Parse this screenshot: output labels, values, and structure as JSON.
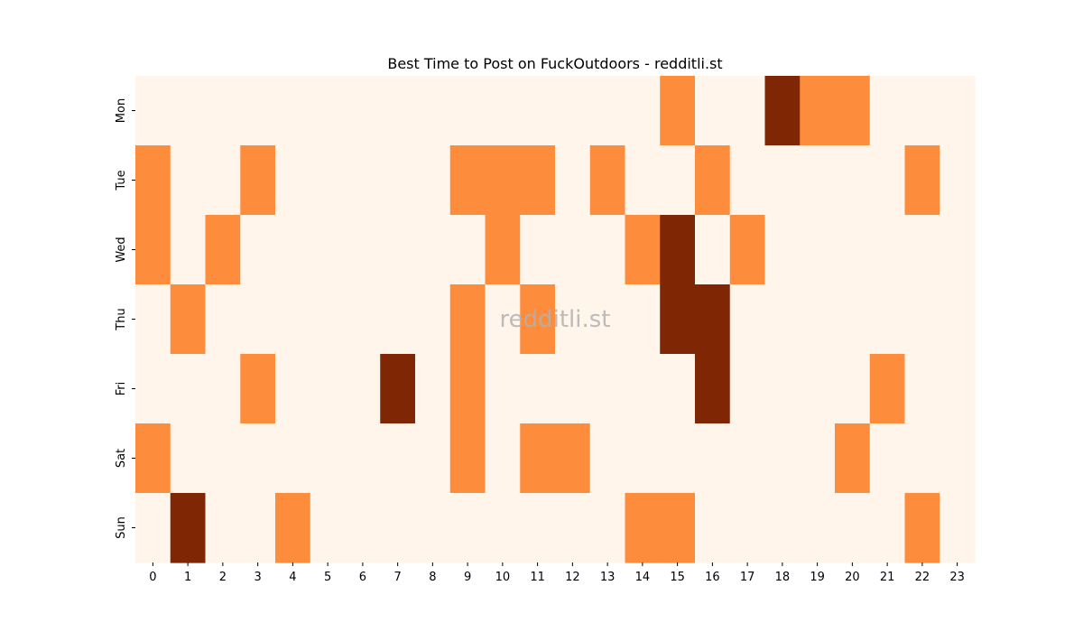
{
  "chart_data": {
    "type": "heatmap",
    "title": "Best Time to Post on FuckOutdoors - redditli.st",
    "watermark": "redditli.st",
    "xlabel": "",
    "ylabel": "",
    "x": [
      "0",
      "1",
      "2",
      "3",
      "4",
      "5",
      "6",
      "7",
      "8",
      "9",
      "10",
      "11",
      "12",
      "13",
      "14",
      "15",
      "16",
      "17",
      "18",
      "19",
      "20",
      "21",
      "22",
      "23"
    ],
    "y": [
      "Mon",
      "Tue",
      "Wed",
      "Thu",
      "Fri",
      "Sat",
      "Sun"
    ],
    "values": [
      [
        0,
        0,
        0,
        0,
        0,
        0,
        0,
        0,
        0,
        0,
        0,
        0,
        0,
        0,
        0,
        1,
        0,
        0,
        2,
        1,
        1,
        0,
        0,
        0
      ],
      [
        1,
        0,
        0,
        1,
        0,
        0,
        0,
        0,
        0,
        1,
        1,
        1,
        0,
        1,
        0,
        0,
        1,
        0,
        0,
        0,
        0,
        0,
        1,
        0
      ],
      [
        1,
        0,
        1,
        0,
        0,
        0,
        0,
        0,
        0,
        0,
        1,
        0,
        0,
        0,
        1,
        2,
        0,
        1,
        0,
        0,
        0,
        0,
        0,
        0
      ],
      [
        0,
        1,
        0,
        0,
        0,
        0,
        0,
        0,
        0,
        1,
        0,
        1,
        0,
        0,
        0,
        2,
        2,
        0,
        0,
        0,
        0,
        0,
        0,
        0
      ],
      [
        0,
        0,
        0,
        1,
        0,
        0,
        0,
        2,
        0,
        1,
        0,
        0,
        0,
        0,
        0,
        0,
        2,
        0,
        0,
        0,
        0,
        1,
        0,
        0
      ],
      [
        1,
        0,
        0,
        0,
        0,
        0,
        0,
        0,
        0,
        1,
        0,
        1,
        1,
        0,
        0,
        0,
        0,
        0,
        0,
        0,
        1,
        0,
        0,
        0
      ],
      [
        0,
        2,
        0,
        0,
        1,
        0,
        0,
        0,
        0,
        0,
        0,
        0,
        0,
        0,
        1,
        1,
        0,
        0,
        0,
        0,
        0,
        0,
        1,
        0
      ]
    ],
    "vmin": 0,
    "vmax": 2,
    "colormap": "Oranges",
    "colors": {
      "0": "#fff5eb",
      "1": "#fd8d3c",
      "2": "#7f2704"
    },
    "colorbar": false,
    "grid": false
  }
}
